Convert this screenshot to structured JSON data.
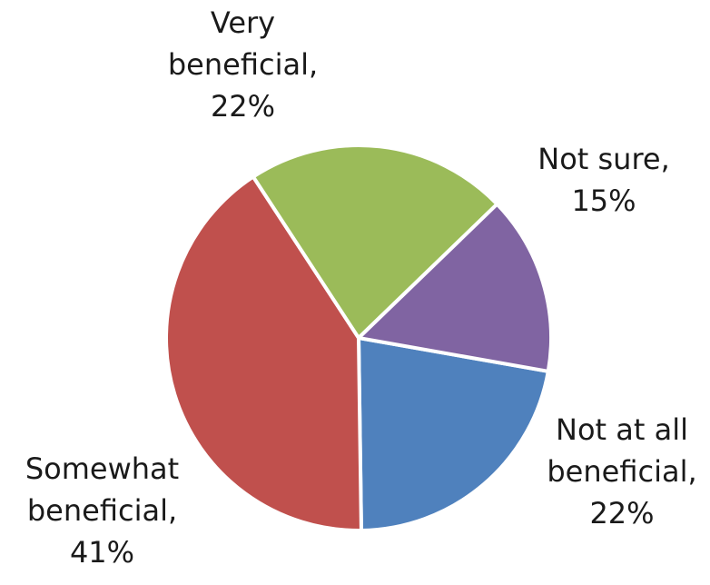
{
  "chart_data": {
    "type": "pie",
    "title": "",
    "slices": [
      {
        "label_lines": [
          "Not at all",
          "beneficial,",
          "22%"
        ],
        "value": 22,
        "color": "#4F81BD"
      },
      {
        "label_lines": [
          "Somewhat",
          "beneficial,",
          "41%"
        ],
        "value": 41,
        "color": "#C0504D"
      },
      {
        "label_lines": [
          "Very",
          "beneficial,",
          "22%"
        ],
        "value": 22,
        "color": "#9BBB59"
      },
      {
        "label_lines": [
          "Not sure,",
          "15%"
        ],
        "value": 15,
        "color": "#8064A2"
      }
    ],
    "start_angle_deg": 10,
    "direction": "clockwise",
    "legend": "none"
  }
}
